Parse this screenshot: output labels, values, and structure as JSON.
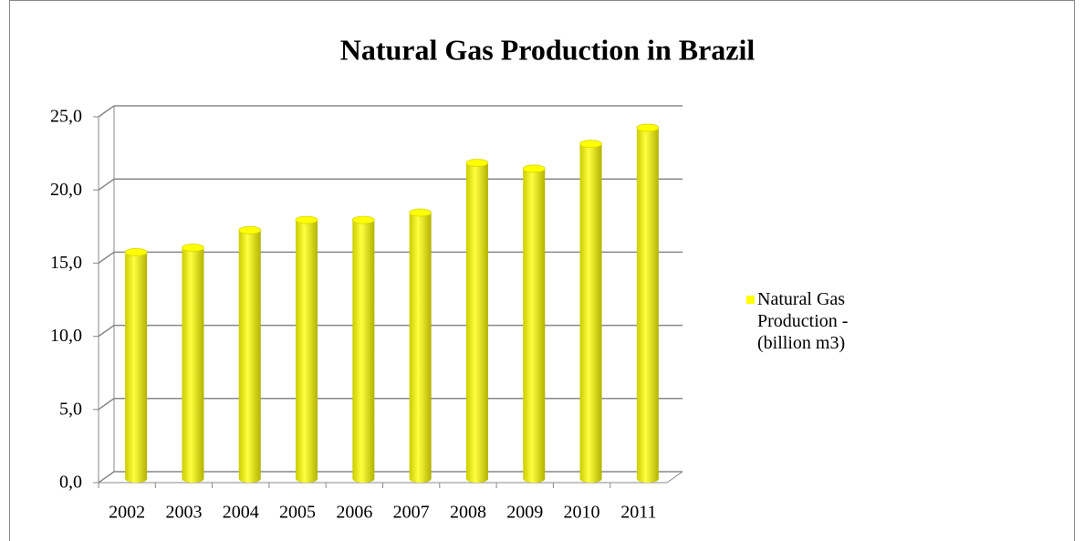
{
  "chart_data": {
    "type": "bar",
    "title": "Natural Gas Production in Brazil",
    "categories": [
      "2002",
      "2003",
      "2004",
      "2005",
      "2006",
      "2007",
      "2008",
      "2009",
      "2010",
      "2011"
    ],
    "series": [
      {
        "name": "Natural Gas Production - (billion m3)",
        "color": "#ffff00",
        "values": [
          15.5,
          15.8,
          17.0,
          17.7,
          17.7,
          18.2,
          21.6,
          21.2,
          22.9,
          24.0
        ]
      }
    ],
    "ylim": [
      0,
      25
    ],
    "yticks": [
      {
        "value": 0,
        "label": "0,0"
      },
      {
        "value": 5,
        "label": "5,0"
      },
      {
        "value": 10,
        "label": "10,0"
      },
      {
        "value": 15,
        "label": "15,0"
      },
      {
        "value": 20,
        "label": "20,0"
      },
      {
        "value": 25,
        "label": "25,0"
      }
    ],
    "grid": true,
    "legend": "right"
  }
}
